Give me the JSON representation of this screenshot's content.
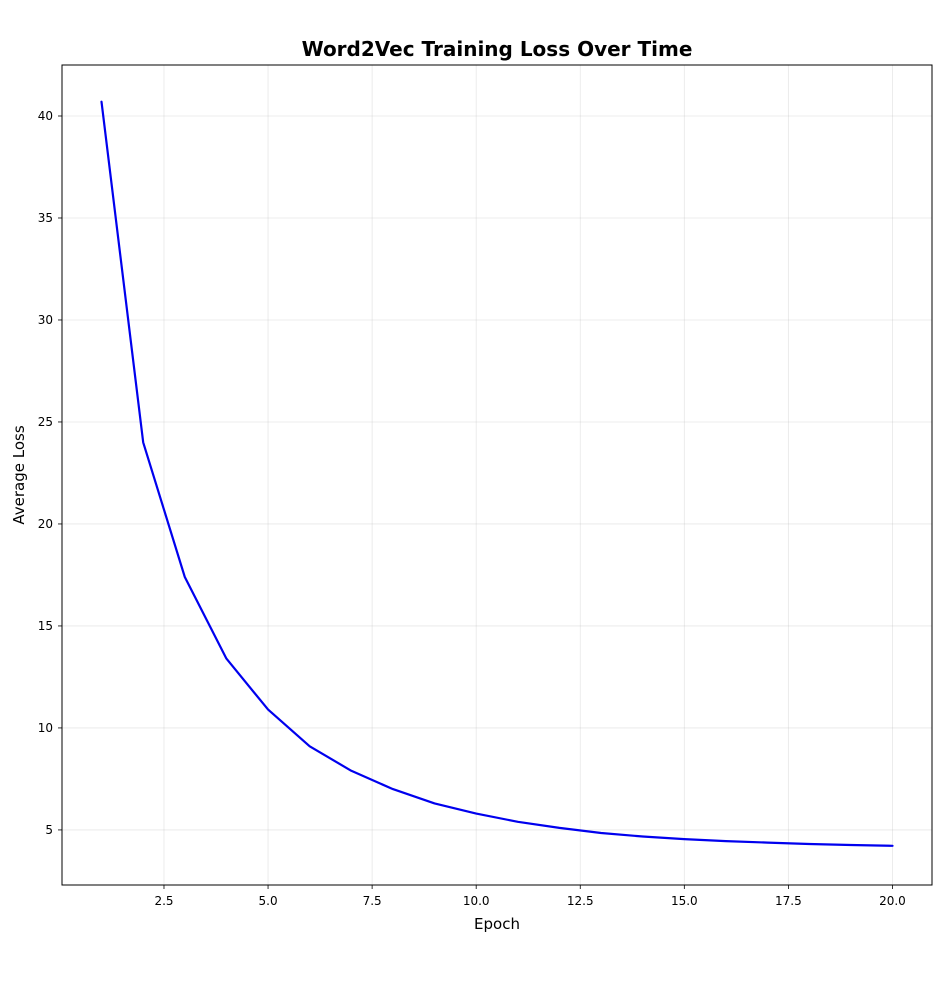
{
  "chart_data": {
    "type": "line",
    "title": "Word2Vec Training Loss Over Time",
    "xlabel": "Epoch",
    "ylabel": "Average Loss",
    "xlim": [
      0.05,
      20.95
    ],
    "ylim": [
      2.3,
      42.5
    ],
    "xticks": [
      2.5,
      5.0,
      7.5,
      10.0,
      12.5,
      15.0,
      17.5,
      20.0
    ],
    "xtick_labels": [
      "2.5",
      "5.0",
      "7.5",
      "10.0",
      "12.5",
      "15.0",
      "17.5",
      "20.0"
    ],
    "yticks": [
      5,
      10,
      15,
      20,
      25,
      30,
      35,
      40
    ],
    "ytick_labels": [
      "5",
      "10",
      "15",
      "20",
      "25",
      "30",
      "35",
      "40"
    ],
    "grid": true,
    "legend": false,
    "series": [
      {
        "color": "#0000ee",
        "x": [
          1,
          2,
          3,
          4,
          5,
          6,
          7,
          8,
          9,
          10,
          11,
          12,
          13,
          14,
          15,
          16,
          17,
          18,
          19,
          20
        ],
        "y": [
          40.7,
          24.0,
          17.4,
          13.4,
          10.9,
          9.1,
          7.9,
          7.0,
          6.3,
          5.8,
          5.4,
          5.1,
          4.85,
          4.68,
          4.55,
          4.45,
          4.38,
          4.31,
          4.26,
          4.22
        ]
      }
    ]
  }
}
